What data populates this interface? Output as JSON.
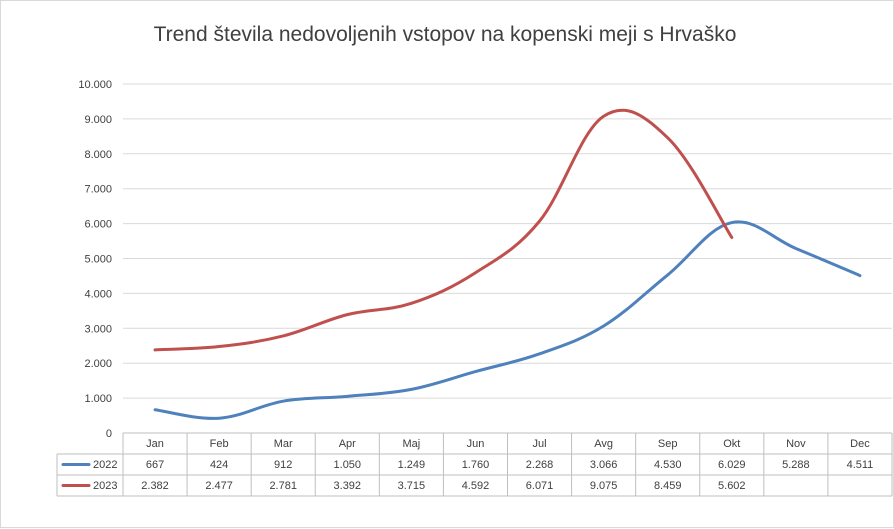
{
  "chart_data": {
    "type": "line",
    "title": "Trend števila nedovoljenih vstopov na kopenski meji s Hrvaško",
    "categories": [
      "Jan",
      "Feb",
      "Mar",
      "Apr",
      "Maj",
      "Jun",
      "Jul",
      "Avg",
      "Sep",
      "Okt",
      "Nov",
      "Dec"
    ],
    "series": [
      {
        "name": "2022",
        "color": "#4f81bd",
        "values": [
          667,
          424,
          912,
          1050,
          1249,
          1760,
          2268,
          3066,
          4530,
          6029,
          5288,
          4511
        ],
        "labels": [
          "667",
          "424",
          "912",
          "1.050",
          "1.249",
          "1.760",
          "2.268",
          "3.066",
          "4.530",
          "6.029",
          "5.288",
          "4.511"
        ]
      },
      {
        "name": "2023",
        "color": "#c0504d",
        "values": [
          2382,
          2477,
          2781,
          3392,
          3715,
          4592,
          6071,
          9075,
          8459,
          5602,
          null,
          null
        ],
        "labels": [
          "2.382",
          "2.477",
          "2.781",
          "3.392",
          "3.715",
          "4.592",
          "6.071",
          "9.075",
          "8.459",
          "5.602",
          "",
          ""
        ]
      }
    ],
    "ylim": [
      0,
      10000
    ],
    "yticks": [
      0,
      1000,
      2000,
      3000,
      4000,
      5000,
      6000,
      7000,
      8000,
      9000,
      10000
    ],
    "ytick_labels": [
      "0",
      "1.000",
      "2.000",
      "3.000",
      "4.000",
      "5.000",
      "6.000",
      "7.000",
      "8.000",
      "9.000",
      "10.000"
    ],
    "grid": true,
    "legend": "data-table"
  }
}
